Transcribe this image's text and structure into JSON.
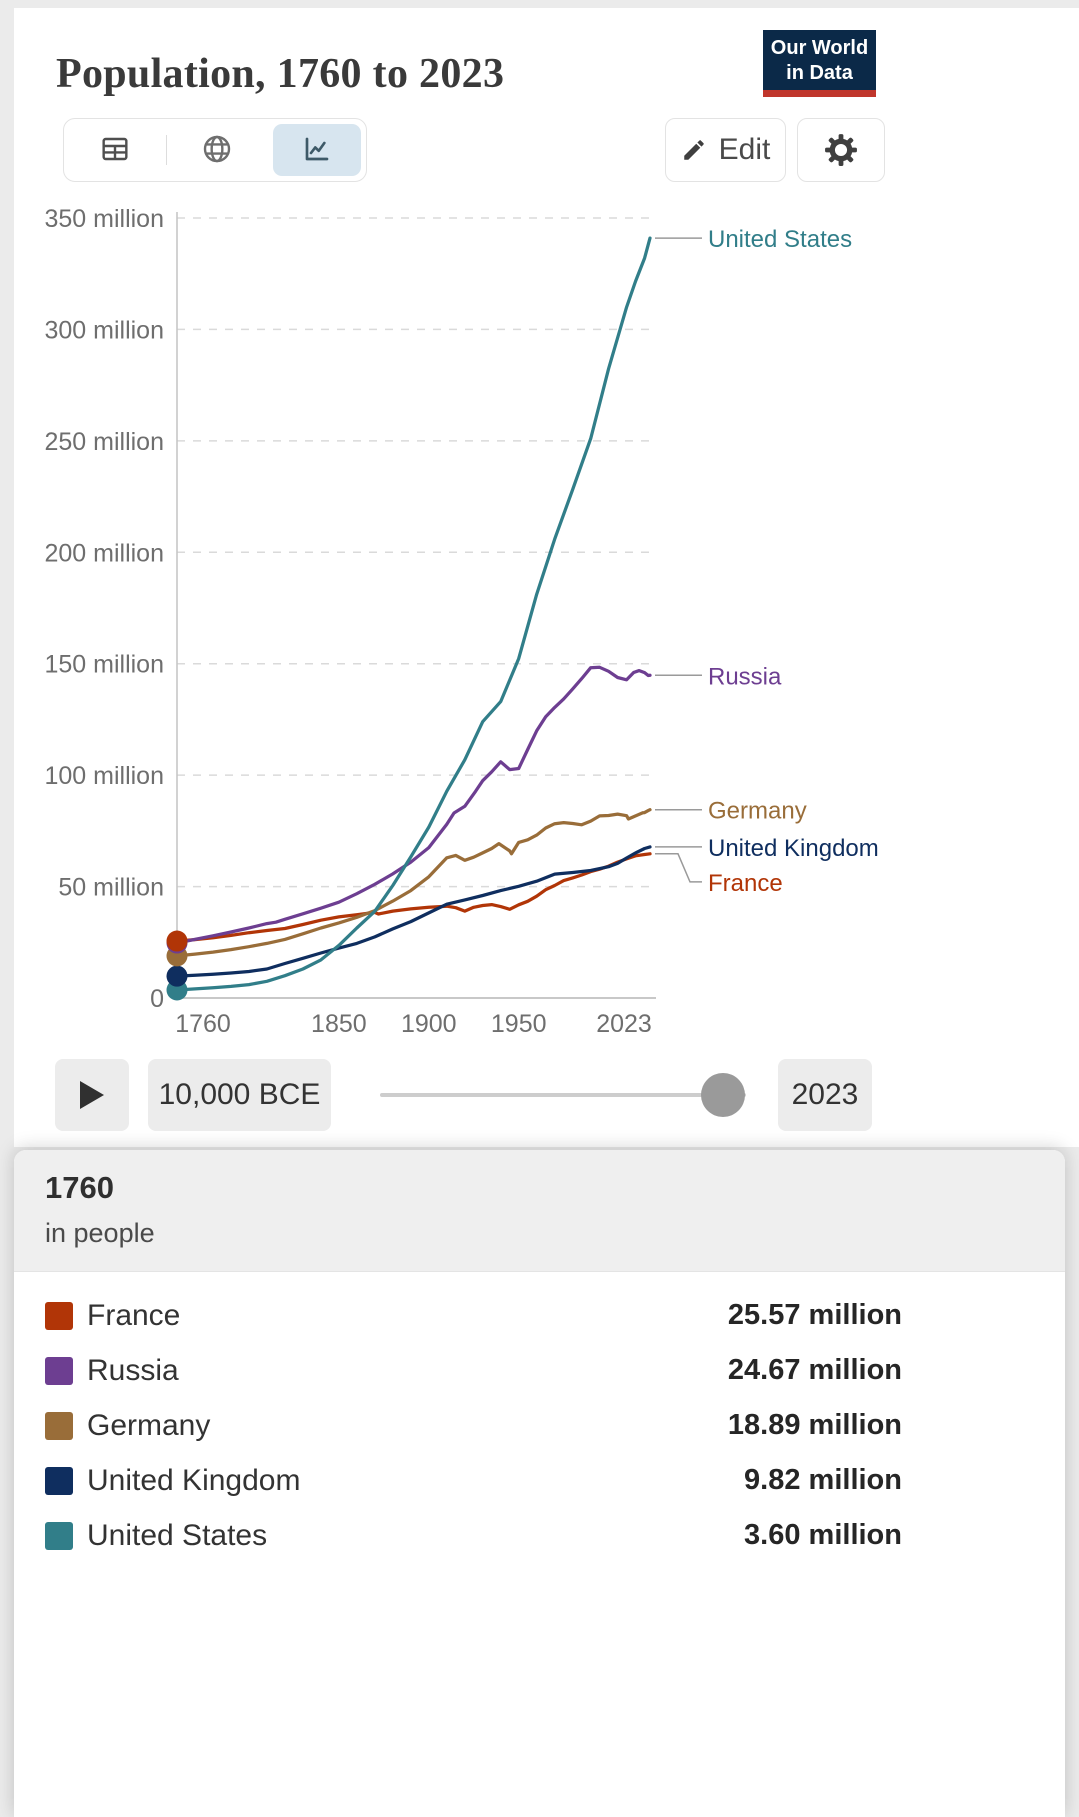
{
  "header": {
    "title": "Population, 1760 to 2023",
    "logo": {
      "line1": "Our World",
      "line2": "in Data",
      "bg_color": "#0B2948",
      "bar_color": "#C0362C"
    }
  },
  "toolbar": {
    "tabs": [
      {
        "name": "table"
      },
      {
        "name": "map"
      },
      {
        "name": "chart",
        "active": true
      }
    ],
    "edit_label": "Edit"
  },
  "timeline": {
    "start_label": "10,000 BCE",
    "end_label": "2023"
  },
  "tooltip": {
    "year": "1760",
    "unit_label": "in people",
    "rows": [
      {
        "entity": "France",
        "value": "25.57 million",
        "color": "#B13507"
      },
      {
        "entity": "Russia",
        "value": "24.67 million",
        "color": "#6D3E91"
      },
      {
        "entity": "Germany",
        "value": "18.89 million",
        "color": "#996D39"
      },
      {
        "entity": "United Kingdom",
        "value": "9.82 million",
        "color": "#0F2E5F"
      },
      {
        "entity": "United States",
        "value": "3.60 million",
        "color": "#317E89"
      }
    ]
  },
  "chart_data": {
    "type": "line",
    "title": "Population, 1760 to 2023",
    "unit": "people",
    "values_unit": "million people",
    "xlim": [
      1760,
      2023
    ],
    "ylim": [
      0,
      350
    ],
    "x_ticks": [
      1760,
      1850,
      1900,
      1950,
      2023
    ],
    "y_ticks": [
      {
        "value": 0,
        "label": "0"
      },
      {
        "value": 50,
        "label": "50 million"
      },
      {
        "value": 100,
        "label": "100 million"
      },
      {
        "value": 150,
        "label": "150 million"
      },
      {
        "value": 200,
        "label": "200 million"
      },
      {
        "value": 250,
        "label": "250 million"
      },
      {
        "value": 300,
        "label": "300 million"
      },
      {
        "value": 350,
        "label": "350 million"
      }
    ],
    "grid": "dashed-horizontal",
    "legend_position": "right-end-labels",
    "series": [
      {
        "name": "France",
        "color": "#B13507",
        "points": [
          [
            1760,
            25.57
          ],
          [
            1770,
            26.2
          ],
          [
            1780,
            27.0
          ],
          [
            1790,
            28.1
          ],
          [
            1800,
            29.3
          ],
          [
            1810,
            30.3
          ],
          [
            1820,
            31.2
          ],
          [
            1830,
            33.0
          ],
          [
            1840,
            34.9
          ],
          [
            1850,
            36.4
          ],
          [
            1860,
            37.4
          ],
          [
            1870,
            38.4
          ],
          [
            1872,
            37.7
          ],
          [
            1880,
            39.0
          ],
          [
            1890,
            40.0
          ],
          [
            1900,
            40.7
          ],
          [
            1910,
            41.2
          ],
          [
            1915,
            40.5
          ],
          [
            1920,
            39.0
          ],
          [
            1925,
            40.7
          ],
          [
            1930,
            41.5
          ],
          [
            1935,
            41.9
          ],
          [
            1940,
            41.0
          ],
          [
            1945,
            39.8
          ],
          [
            1950,
            41.8
          ],
          [
            1955,
            43.4
          ],
          [
            1960,
            45.7
          ],
          [
            1965,
            48.6
          ],
          [
            1970,
            50.5
          ],
          [
            1975,
            52.7
          ],
          [
            1980,
            53.9
          ],
          [
            1985,
            55.2
          ],
          [
            1990,
            56.7
          ],
          [
            1995,
            57.8
          ],
          [
            2000,
            59.2
          ],
          [
            2005,
            61.0
          ],
          [
            2010,
            62.4
          ],
          [
            2015,
            63.8
          ],
          [
            2020,
            64.4
          ],
          [
            2023,
            64.7
          ]
        ]
      },
      {
        "name": "Russia",
        "color": "#6D3E91",
        "points": [
          [
            1760,
            24.67
          ],
          [
            1770,
            26.3
          ],
          [
            1780,
            27.9
          ],
          [
            1790,
            29.6
          ],
          [
            1800,
            31.4
          ],
          [
            1810,
            33.4
          ],
          [
            1815,
            34.0
          ],
          [
            1820,
            35.3
          ],
          [
            1830,
            37.8
          ],
          [
            1840,
            40.3
          ],
          [
            1850,
            43.0
          ],
          [
            1860,
            46.8
          ],
          [
            1870,
            51.0
          ],
          [
            1880,
            55.7
          ],
          [
            1890,
            61.0
          ],
          [
            1900,
            67.5
          ],
          [
            1910,
            78.0
          ],
          [
            1914,
            83.0
          ],
          [
            1920,
            86.0
          ],
          [
            1926,
            92.7
          ],
          [
            1930,
            97.5
          ],
          [
            1935,
            101.5
          ],
          [
            1940,
            106.0
          ],
          [
            1945,
            102.5
          ],
          [
            1950,
            103.0
          ],
          [
            1955,
            111.5
          ],
          [
            1960,
            119.9
          ],
          [
            1965,
            126.2
          ],
          [
            1970,
            130.4
          ],
          [
            1975,
            134.2
          ],
          [
            1980,
            138.7
          ],
          [
            1985,
            143.3
          ],
          [
            1990,
            148.2
          ],
          [
            1995,
            148.4
          ],
          [
            2000,
            146.6
          ],
          [
            2005,
            143.8
          ],
          [
            2010,
            142.8
          ],
          [
            2014,
            146.1
          ],
          [
            2017,
            146.9
          ],
          [
            2020,
            146.0
          ],
          [
            2022,
            144.7
          ],
          [
            2023,
            144.8
          ]
        ]
      },
      {
        "name": "Germany",
        "color": "#996D39",
        "points": [
          [
            1760,
            18.89
          ],
          [
            1770,
            19.7
          ],
          [
            1780,
            20.6
          ],
          [
            1790,
            21.7
          ],
          [
            1800,
            23.0
          ],
          [
            1810,
            24.5
          ],
          [
            1820,
            26.3
          ],
          [
            1830,
            28.8
          ],
          [
            1840,
            31.4
          ],
          [
            1850,
            33.7
          ],
          [
            1860,
            36.2
          ],
          [
            1870,
            39.2
          ],
          [
            1880,
            43.5
          ],
          [
            1890,
            48.2
          ],
          [
            1900,
            54.4
          ],
          [
            1910,
            62.9
          ],
          [
            1915,
            64.0
          ],
          [
            1920,
            61.8
          ],
          [
            1925,
            63.2
          ],
          [
            1930,
            65.1
          ],
          [
            1935,
            67.1
          ],
          [
            1939,
            69.3
          ],
          [
            1945,
            66.0
          ],
          [
            1946,
            64.7
          ],
          [
            1950,
            69.8
          ],
          [
            1955,
            71.0
          ],
          [
            1960,
            73.1
          ],
          [
            1965,
            76.3
          ],
          [
            1970,
            78.2
          ],
          [
            1975,
            78.7
          ],
          [
            1980,
            78.3
          ],
          [
            1985,
            77.7
          ],
          [
            1990,
            79.4
          ],
          [
            1995,
            81.7
          ],
          [
            2000,
            81.9
          ],
          [
            2005,
            82.5
          ],
          [
            2010,
            81.8
          ],
          [
            2011,
            80.3
          ],
          [
            2015,
            81.7
          ],
          [
            2019,
            83.1
          ],
          [
            2020,
            83.2
          ],
          [
            2022,
            84.1
          ],
          [
            2023,
            84.5
          ]
        ]
      },
      {
        "name": "United Kingdom",
        "color": "#0F2E5F",
        "points": [
          [
            1760,
            9.82
          ],
          [
            1770,
            10.2
          ],
          [
            1780,
            10.7
          ],
          [
            1790,
            11.2
          ],
          [
            1800,
            11.9
          ],
          [
            1810,
            13.0
          ],
          [
            1820,
            15.5
          ],
          [
            1830,
            17.8
          ],
          [
            1840,
            20.2
          ],
          [
            1850,
            22.4
          ],
          [
            1860,
            24.5
          ],
          [
            1870,
            27.4
          ],
          [
            1880,
            31.0
          ],
          [
            1890,
            34.3
          ],
          [
            1900,
            38.2
          ],
          [
            1910,
            42.1
          ],
          [
            1920,
            44.0
          ],
          [
            1930,
            46.0
          ],
          [
            1940,
            48.2
          ],
          [
            1950,
            50.1
          ],
          [
            1960,
            52.4
          ],
          [
            1970,
            55.6
          ],
          [
            1980,
            56.3
          ],
          [
            1990,
            57.2
          ],
          [
            2000,
            58.9
          ],
          [
            2005,
            60.4
          ],
          [
            2010,
            62.8
          ],
          [
            2015,
            65.1
          ],
          [
            2020,
            67.1
          ],
          [
            2023,
            67.8
          ]
        ]
      },
      {
        "name": "United States",
        "color": "#317E89",
        "points": [
          [
            1760,
            3.6
          ],
          [
            1770,
            4.1
          ],
          [
            1780,
            4.6
          ],
          [
            1790,
            5.2
          ],
          [
            1800,
            6.0
          ],
          [
            1810,
            7.5
          ],
          [
            1820,
            10.0
          ],
          [
            1830,
            13.0
          ],
          [
            1840,
            17.1
          ],
          [
            1850,
            23.6
          ],
          [
            1860,
            31.4
          ],
          [
            1870,
            38.9
          ],
          [
            1880,
            50.5
          ],
          [
            1890,
            63.3
          ],
          [
            1900,
            76.7
          ],
          [
            1910,
            92.8
          ],
          [
            1920,
            106.9
          ],
          [
            1930,
            124.0
          ],
          [
            1940,
            133.0
          ],
          [
            1950,
            152.3
          ],
          [
            1960,
            181.2
          ],
          [
            1970,
            205.9
          ],
          [
            1980,
            228.2
          ],
          [
            1990,
            251.0
          ],
          [
            2000,
            282.4
          ],
          [
            2010,
            310.0
          ],
          [
            2015,
            321.7
          ],
          [
            2020,
            332.0
          ],
          [
            2023,
            341.0
          ]
        ]
      }
    ]
  }
}
